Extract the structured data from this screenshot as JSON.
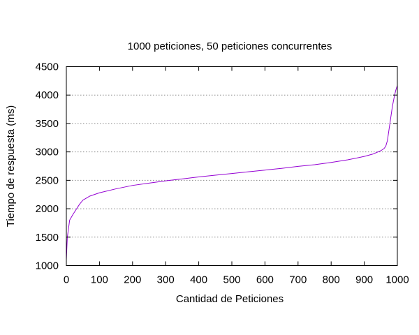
{
  "chart_data": {
    "type": "line",
    "title": "1000 peticiones, 50 peticiones concurrentes",
    "xlabel": "Cantidad de Peticiones",
    "ylabel": "Tiempo de respuesta (ms)",
    "xlim": [
      0,
      1000
    ],
    "ylim": [
      1000,
      4500
    ],
    "x_ticks": [
      0,
      100,
      200,
      300,
      400,
      500,
      600,
      700,
      800,
      900,
      1000
    ],
    "y_ticks": [
      1000,
      1500,
      2000,
      2500,
      3000,
      3500,
      4000,
      4500
    ],
    "grid": "horizontal dotted",
    "legend": "none",
    "series": [
      {
        "color": "#9400d3",
        "x": [
          0,
          3,
          10,
          20,
          30,
          40,
          50,
          70,
          100,
          150,
          200,
          250,
          300,
          350,
          400,
          450,
          500,
          550,
          600,
          650,
          700,
          750,
          800,
          850,
          900,
          925,
          950,
          960,
          965,
          970,
          975,
          980,
          985,
          990,
          995,
          1000
        ],
        "y": [
          1100,
          1500,
          1800,
          1900,
          1990,
          2080,
          2150,
          2220,
          2280,
          2350,
          2410,
          2450,
          2490,
          2525,
          2560,
          2590,
          2620,
          2650,
          2680,
          2710,
          2745,
          2775,
          2815,
          2860,
          2920,
          2960,
          3020,
          3060,
          3100,
          3200,
          3400,
          3600,
          3800,
          3950,
          4080,
          4170
        ]
      }
    ]
  }
}
